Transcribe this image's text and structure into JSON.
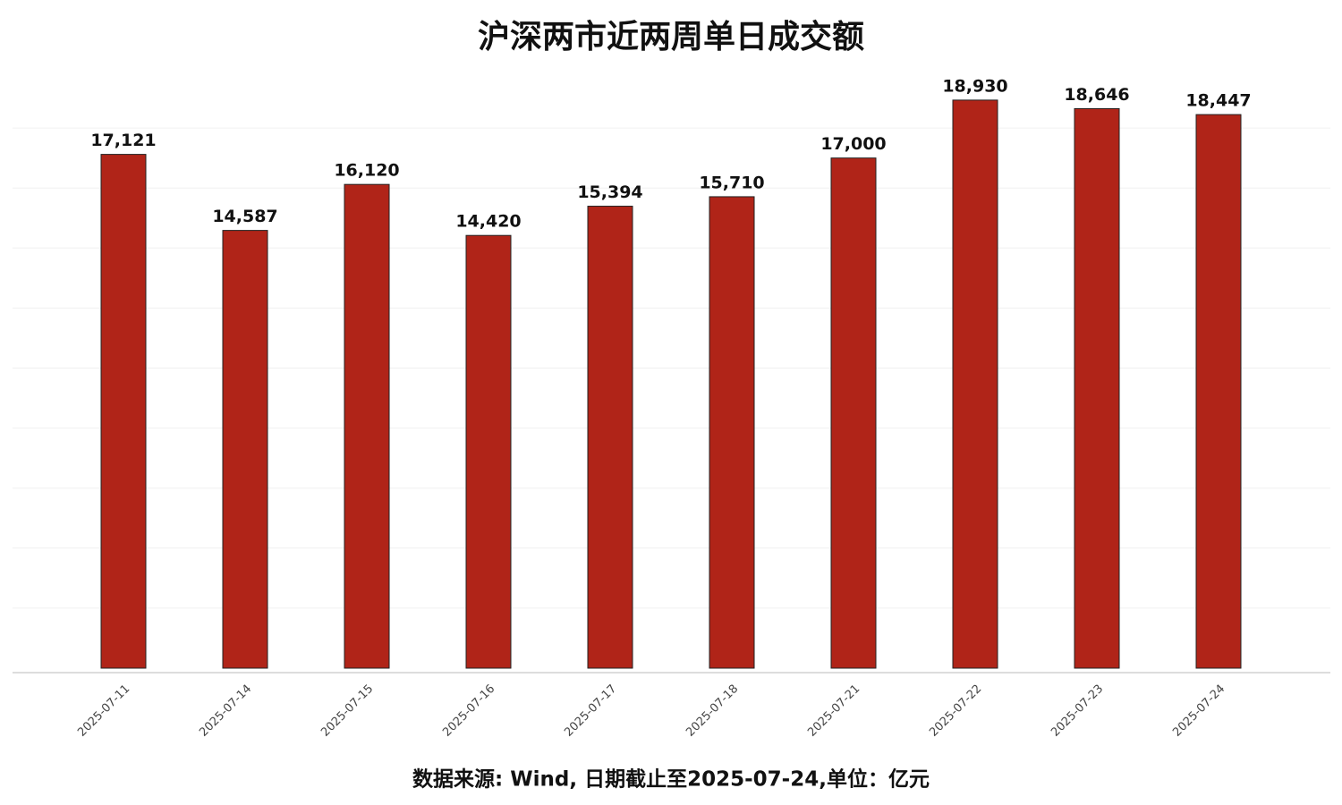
{
  "chart_data": {
    "type": "bar",
    "title": "沪深两市近两周单日成交额",
    "footnote": "数据来源: Wind, 日期截止至2025-07-24,单位：亿元",
    "categories": [
      "2025-07-11",
      "2025-07-14",
      "2025-07-15",
      "2025-07-16",
      "2025-07-17",
      "2025-07-18",
      "2025-07-21",
      "2025-07-22",
      "2025-07-23",
      "2025-07-24"
    ],
    "values": [
      17121,
      14587,
      16120,
      14420,
      15394,
      15710,
      17000,
      18930,
      18646,
      18447
    ],
    "value_labels": [
      "17,121",
      "14,587",
      "16,120",
      "14,420",
      "15,394",
      "15,710",
      "17,000",
      "18,930",
      "18,646",
      "18,447"
    ],
    "color": "#b02418",
    "ylim": [
      0,
      20000
    ],
    "yticks": [
      2000,
      4000,
      6000,
      8000,
      10000,
      12000,
      14000,
      16000,
      18000
    ],
    "grid": true
  }
}
